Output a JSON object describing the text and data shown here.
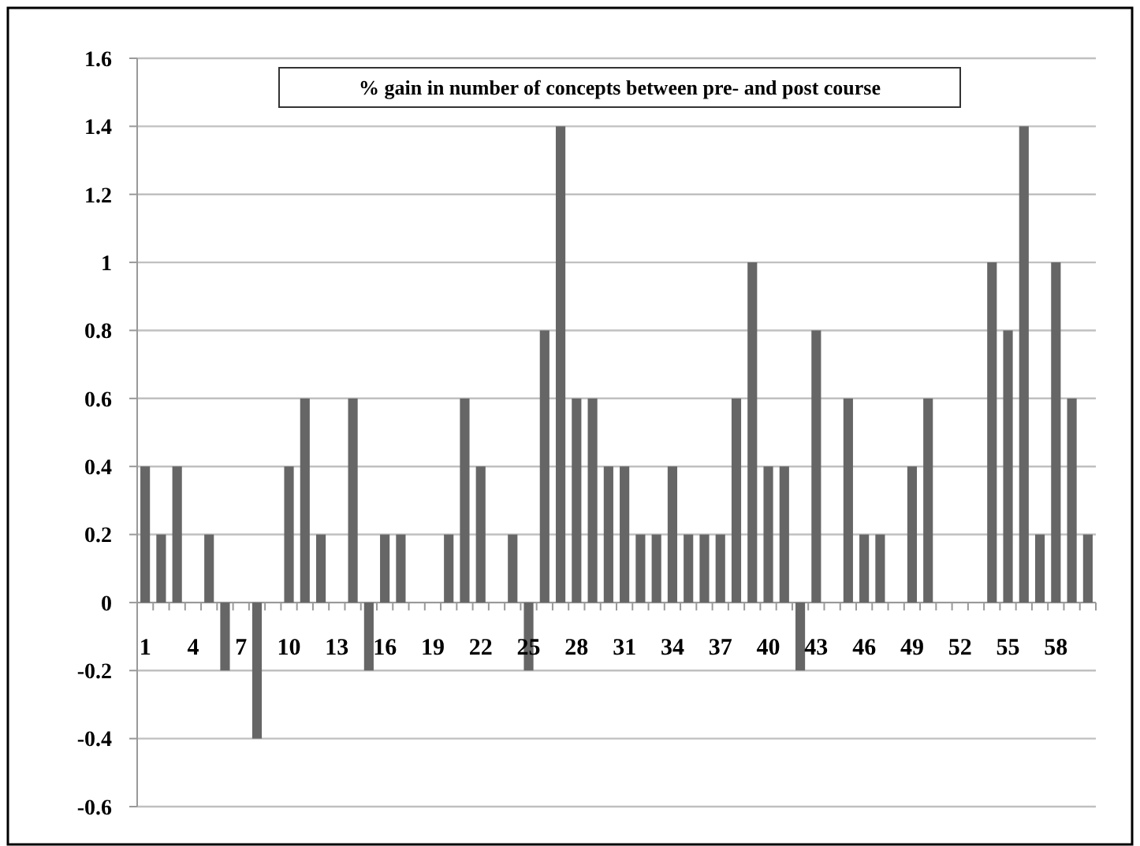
{
  "chart_data": {
    "type": "bar",
    "title": "% gain in number of concepts between pre- and post course",
    "categories": [
      "1",
      null,
      null,
      "4",
      null,
      null,
      "7",
      null,
      null,
      "10",
      null,
      null,
      "13",
      null,
      null,
      "16",
      null,
      null,
      "19",
      null,
      null,
      "22",
      null,
      null,
      "25",
      null,
      null,
      "28",
      null,
      null,
      "31",
      null,
      null,
      "34",
      null,
      null,
      "37",
      null,
      null,
      "40",
      null,
      null,
      "43",
      null,
      null,
      "46",
      null,
      null,
      "49",
      null,
      null,
      "52",
      null,
      null,
      "55",
      null,
      null,
      "58",
      null,
      null
    ],
    "values": [
      0.4,
      0.2,
      0.4,
      0,
      0.2,
      -0.2,
      0,
      -0.4,
      0,
      0.4,
      0.6,
      0.2,
      0,
      0.6,
      -0.2,
      0.2,
      0.2,
      0,
      0,
      0.2,
      0.6,
      0.4,
      0,
      0.2,
      -0.2,
      0.8,
      1.4,
      0.6,
      0.6,
      0.4,
      0.4,
      0.2,
      0.2,
      0.4,
      0.2,
      0.2,
      0.2,
      0.6,
      1,
      0.4,
      0.4,
      -0.2,
      0.8,
      0,
      0.6,
      0.2,
      0.2,
      0,
      0.4,
      0.6,
      0,
      0,
      0,
      1,
      0.8,
      1.4,
      0.2,
      1,
      0.6,
      0.2
    ],
    "color": "#666666",
    "ylim": [
      -0.6,
      1.6
    ],
    "yticks": [
      -0.6,
      -0.4,
      -0.2,
      0,
      0.2,
      0.4,
      0.6,
      0.8,
      1,
      1.2,
      1.4,
      1.6
    ],
    "grid": "y"
  }
}
